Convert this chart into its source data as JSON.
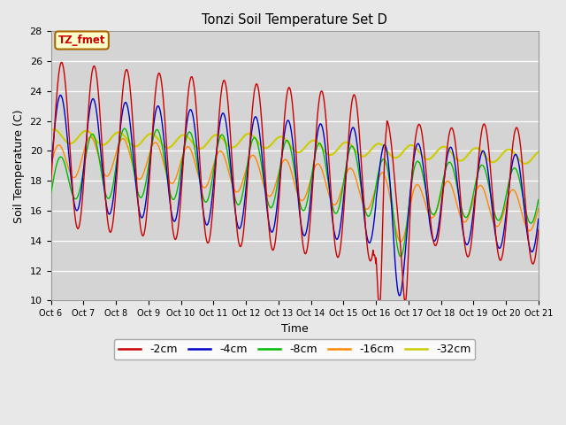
{
  "title": "Tonzi Soil Temperature Set D",
  "xlabel": "Time",
  "ylabel": "Soil Temperature (C)",
  "ylim": [
    10,
    28
  ],
  "xlim": [
    0,
    360
  ],
  "fig_bg_color": "#e8e8e8",
  "plot_bg_color": "#d4d4d4",
  "series_colors": {
    "-2cm": "#cc0000",
    "-4cm": "#0000cc",
    "-8cm": "#00bb00",
    "-16cm": "#ff8800",
    "-32cm": "#cccc00"
  },
  "legend_label": "TZ_fmet",
  "legend_bg": "#ffffcc",
  "legend_border": "#aa6600",
  "tick_labels": [
    "Oct 6",
    "Oct 7",
    "Oct 8",
    "Oct 9",
    "Oct 10",
    "Oct 11",
    "Oct 12",
    "Oct 13",
    "Oct 14",
    "Oct 15",
    "Oct 16",
    "Oct 17",
    "Oct 18",
    "Oct 19",
    "Oct 20",
    "Oct 21"
  ],
  "yticks": [
    10,
    12,
    14,
    16,
    18,
    20,
    22,
    24,
    26,
    28
  ]
}
